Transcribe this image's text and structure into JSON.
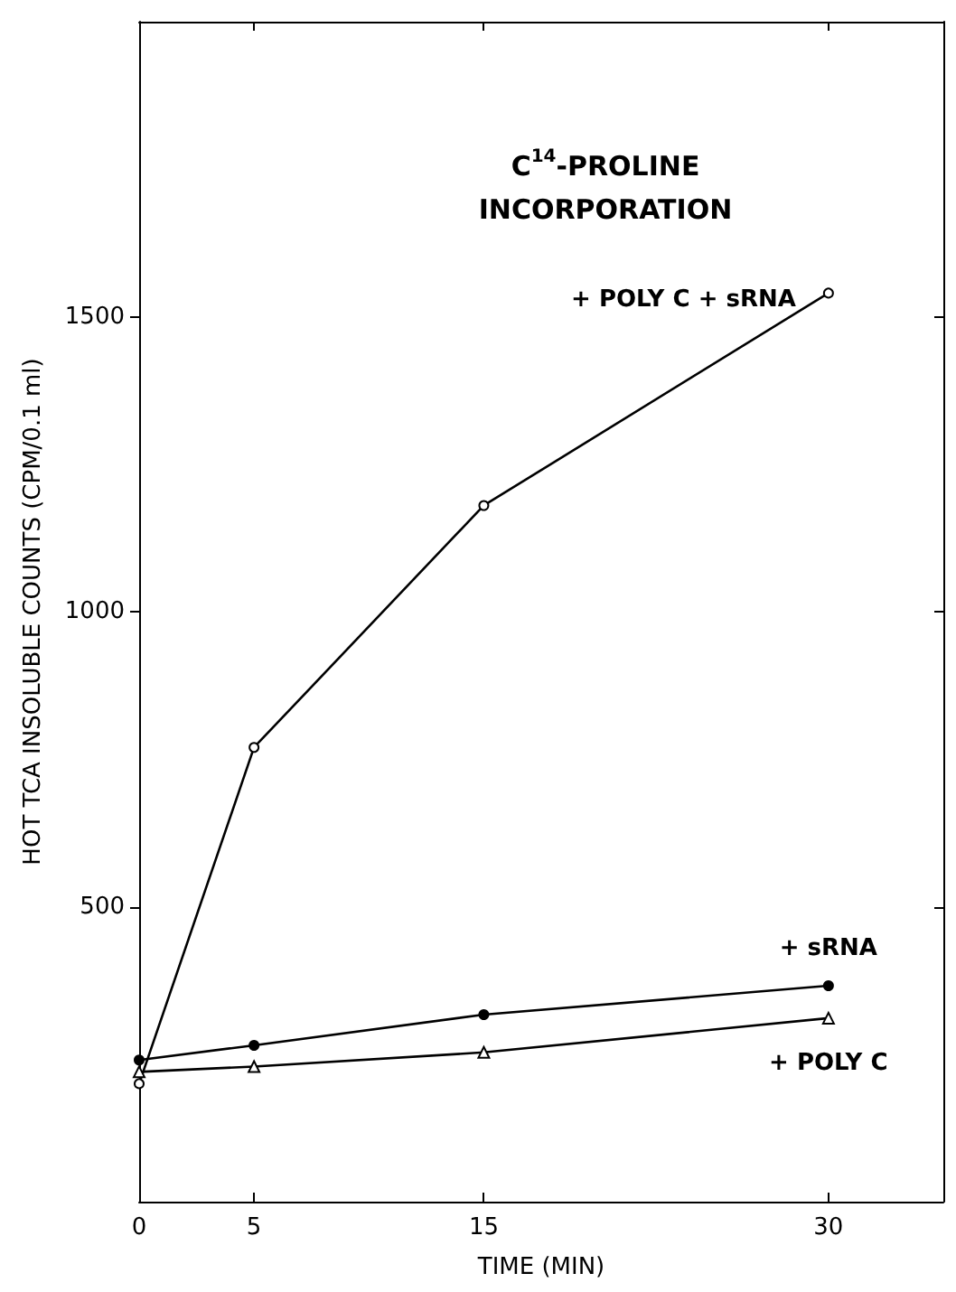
{
  "chart_data": {
    "type": "line",
    "title": "C$^{14}$-PROLINE INCORPORATION",
    "xlabel": "TIME (MIN)",
    "ylabel": "HOT TCA INSOLUBLE COUNTS (CPM/0.1 ml)",
    "xlim": [
      0,
      35
    ],
    "xticks": [
      0,
      5,
      15,
      30
    ],
    "ylim": [
      0,
      2000
    ],
    "yticks": [
      500,
      1000,
      1500
    ],
    "grid": false,
    "legend": false,
    "marker": "circle",
    "line_style": "solid",
    "series": [
      {
        "name": "+ POLY C + sRNA",
        "color": "#000000",
        "x": [
          0,
          5,
          15,
          30
        ],
        "values": [
          200,
          770,
          1180,
          1540
        ]
      },
      {
        "name": "+ sRNA",
        "color": "#000000",
        "x": [
          0,
          5,
          15,
          30
        ],
        "values": [
          240,
          265,
          317,
          366
        ]
      },
      {
        "name": "+ POLY C",
        "color": "#000000",
        "marker": "triangle",
        "x": [
          0,
          5,
          15,
          30
        ],
        "values": [
          220,
          229,
          253,
          311
        ]
      }
    ]
  }
}
